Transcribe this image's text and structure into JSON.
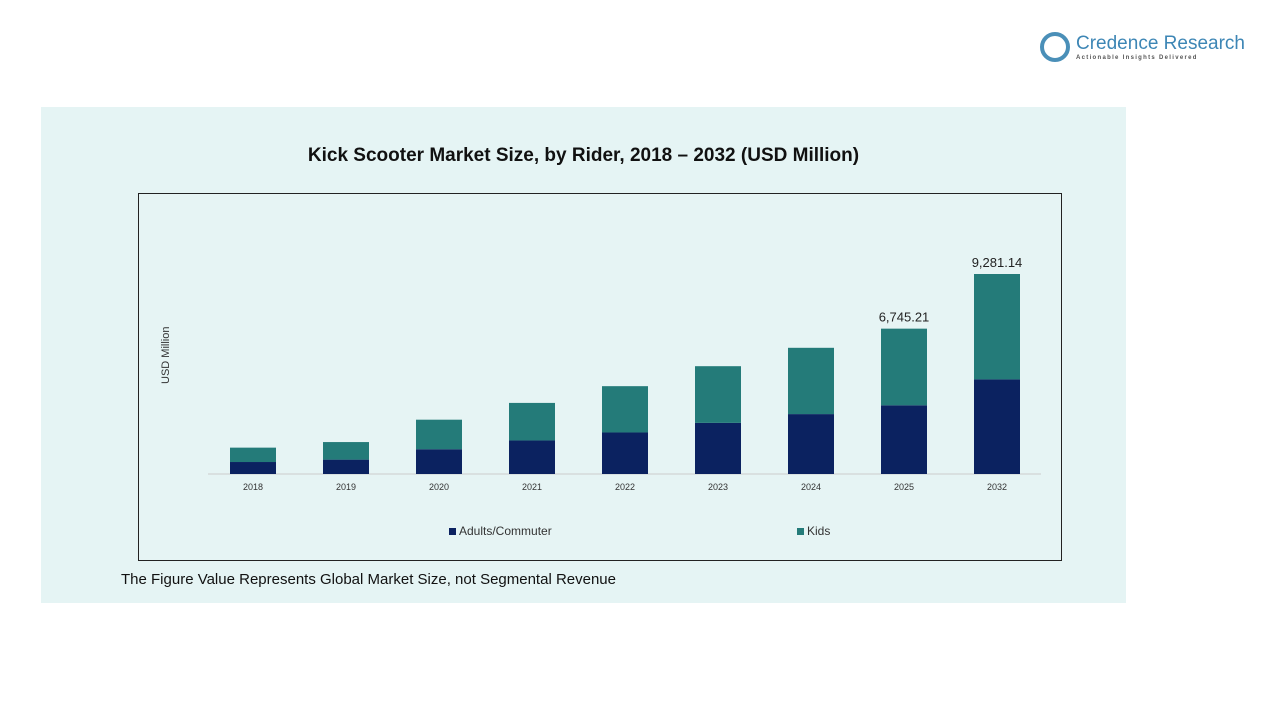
{
  "brand": {
    "name": "Credence Research",
    "tagline": "Actionable Insights Delivered"
  },
  "note": "The Figure Value Represents Global Market Size, not Segmental Revenue",
  "chart_data": {
    "type": "bar",
    "stacked": true,
    "title": "Kick Scooter Market Size, by Rider, 2018 – 2032 (USD Million)",
    "xlabel": "",
    "ylabel": "USD Million",
    "categories": [
      "2018",
      "2019",
      "2020",
      "2021",
      "2022",
      "2023",
      "2024",
      "2025",
      "2032"
    ],
    "series": [
      {
        "name": "Adults/Commuter",
        "color": "#0b2260",
        "values": [
          556,
          667,
          1149,
          1557,
          1927,
          2372,
          2780,
          3187,
          4391
        ]
      },
      {
        "name": "Kids",
        "color": "#247b79",
        "values": [
          667,
          815,
          1371,
          1742,
          2149,
          2631,
          3076,
          3558,
          4890
        ]
      }
    ],
    "data_labels": {
      "2025": "6,745.21",
      "2032": "9,281.14"
    },
    "grid": false,
    "legend": "bottom"
  }
}
